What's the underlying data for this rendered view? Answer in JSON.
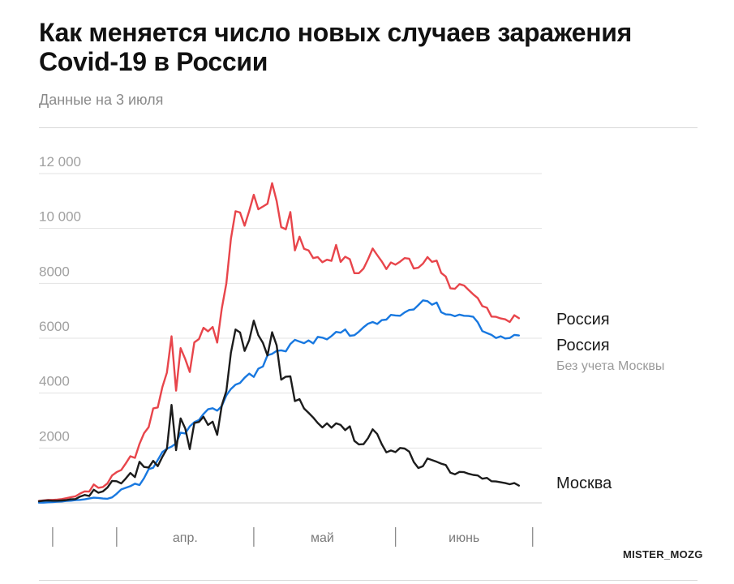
{
  "chart_data": {
    "type": "line",
    "title": "Как меняется число новых случаев заражения Covid-19 в России",
    "subtitle": "Данные на 3 июля",
    "ylim": [
      0,
      12000
    ],
    "yticks": [
      {
        "value": 12000,
        "label": "12 000"
      },
      {
        "value": 10000,
        "label": "10 000"
      },
      {
        "value": 8000,
        "label": "8000"
      },
      {
        "value": 6000,
        "label": "6000"
      },
      {
        "value": 4000,
        "label": "4000"
      },
      {
        "value": 2000,
        "label": "2000"
      }
    ],
    "xlim": [
      "2020-03-15",
      "2020-07-03"
    ],
    "month_separators": [
      "2020-03-18",
      "2020-04-01",
      "2020-05-01",
      "2020-06-01",
      "2020-07-01"
    ],
    "month_labels": [
      {
        "date": "2020-04-16",
        "label": "апр."
      },
      {
        "date": "2020-05-16",
        "label": "май"
      },
      {
        "date": "2020-06-16",
        "label": "июнь"
      }
    ],
    "series": [
      {
        "name": "Россия",
        "color": "#e8454b",
        "start": "2020-03-15",
        "values": [
          70,
          90,
          110,
          110,
          120,
          140,
          170,
          210,
          240,
          340,
          420,
          410,
          670,
          550,
          580,
          710,
          1000,
          1120,
          1200,
          1440,
          1700,
          1640,
          2150,
          2540,
          2760,
          3440,
          3480,
          4220,
          4750,
          6070,
          4090,
          5640,
          5240,
          4770,
          5850,
          5970,
          6380,
          6250,
          6410,
          5840,
          7090,
          8000,
          9620,
          10630,
          10580,
          10100,
          10640,
          11230,
          10700,
          10800,
          10900,
          11650,
          11000,
          10050,
          9970,
          10600,
          9200,
          9700,
          9260,
          9200,
          8920,
          8960,
          8770,
          8860,
          8820,
          9400,
          8780,
          8970,
          8880,
          8370,
          8370,
          8540,
          8880,
          9270,
          9030,
          8800,
          8520,
          8760,
          8680,
          8790,
          8920,
          8900,
          8540,
          8570,
          8720,
          8960,
          8780,
          8830,
          8380,
          8250,
          7820,
          7800,
          7970,
          7920,
          7760,
          7600,
          7460,
          7170,
          7110,
          6790,
          6780,
          6720,
          6690,
          6590,
          6840,
          6730
        ],
        "end_label": "Россия"
      },
      {
        "name": "Россия Без учета Москвы",
        "color": "#1878e0",
        "start": "2020-03-15",
        "values": [
          10,
          10,
          20,
          30,
          40,
          50,
          70,
          80,
          100,
          110,
          130,
          160,
          190,
          180,
          160,
          150,
          200,
          330,
          490,
          550,
          610,
          700,
          650,
          900,
          1230,
          1280,
          1560,
          1850,
          1970,
          2050,
          2170,
          2560,
          2530,
          2790,
          2940,
          3020,
          3240,
          3410,
          3450,
          3360,
          3530,
          3920,
          4150,
          4310,
          4370,
          4560,
          4710,
          4590,
          4890,
          4970,
          5380,
          5430,
          5540,
          5560,
          5520,
          5790,
          5940,
          5880,
          5820,
          5920,
          5810,
          6050,
          6020,
          5960,
          6080,
          6230,
          6200,
          6320,
          6090,
          6110,
          6240,
          6400,
          6530,
          6590,
          6520,
          6660,
          6680,
          6850,
          6830,
          6820,
          6940,
          7030,
          7050,
          7210,
          7380,
          7350,
          7220,
          7300,
          6950,
          6870,
          6860,
          6800,
          6860,
          6820,
          6810,
          6780,
          6580,
          6260,
          6190,
          6120,
          6010,
          6070,
          5990,
          6010,
          6120,
          6100
        ],
        "end_label": "Россия",
        "end_sublabel": "Без учета Москвы"
      },
      {
        "name": "Москва",
        "color": "#1c1c1c",
        "start": "2020-03-15",
        "values": [
          60,
          80,
          90,
          80,
          80,
          90,
          100,
          130,
          140,
          230,
          290,
          250,
          480,
          370,
          420,
          560,
          800,
          790,
          710,
          890,
          1090,
          940,
          1500,
          1310,
          1290,
          1530,
          1340,
          1680,
          1970,
          3570,
          1920,
          3080,
          2710,
          1960,
          2910,
          2950,
          3140,
          2840,
          2960,
          2480,
          3560,
          4080,
          5470,
          6320,
          6210,
          5540,
          5930,
          6640,
          6110,
          5830,
          5370,
          6220,
          5740,
          4490,
          4600,
          4610,
          3710,
          3780,
          3440,
          3280,
          3110,
          2910,
          2750,
          2900,
          2740,
          2900,
          2840,
          2650,
          2790,
          2260,
          2130,
          2140,
          2360,
          2680,
          2510,
          2140,
          1840,
          1910,
          1850,
          2000,
          1980,
          1870,
          1490,
          1270,
          1340,
          1620,
          1560,
          1500,
          1430,
          1380,
          1100,
          1040,
          1130,
          1120,
          1060,
          1020,
          1000,
          880,
          910,
          790,
          780,
          750,
          720,
          680,
          720,
          630
        ],
        "end_label": "Москва"
      }
    ],
    "grid": true,
    "legend": "end-of-line labels"
  },
  "watermark": "MISTER_MOZG"
}
